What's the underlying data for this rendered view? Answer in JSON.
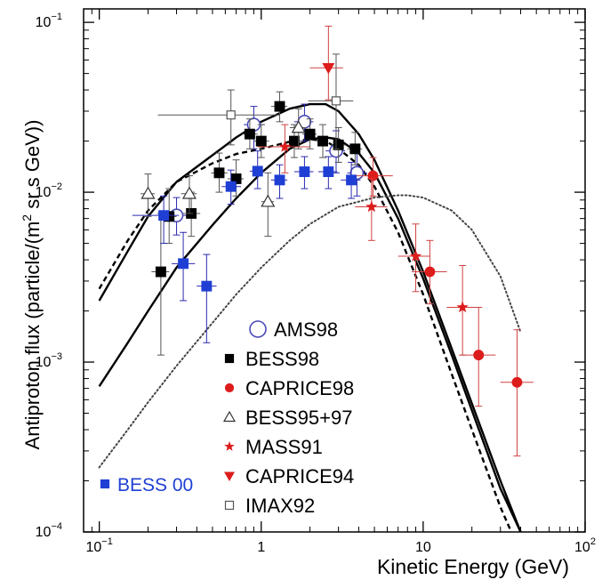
{
  "chart_data": {
    "type": "scatter",
    "title": "",
    "xlabel": "Kinetic Energy (GeV)",
    "ylabel_parts": [
      "Antiproton flux (particle/(m",
      "2",
      " sr s GeV))"
    ],
    "xscale": "log",
    "yscale": "log",
    "xlim": [
      0.08,
      100
    ],
    "ylim": [
      0.0001,
      0.12
    ],
    "x_ticks": [
      {
        "value": 0.1,
        "base": "10",
        "exp": "−1"
      },
      {
        "value": 1,
        "base": "1",
        "exp": ""
      },
      {
        "value": 10,
        "base": "10",
        "exp": ""
      },
      {
        "value": 100,
        "base": "10",
        "exp": "2"
      }
    ],
    "y_ticks": [
      {
        "value": 0.0001,
        "base": "10",
        "exp": "−4"
      },
      {
        "value": 0.001,
        "base": "10",
        "exp": "−3"
      },
      {
        "value": 0.01,
        "base": "10",
        "exp": "−2"
      },
      {
        "value": 0.1,
        "base": "10",
        "exp": "−1"
      }
    ],
    "grid": false,
    "legend_position": "inside, lower center",
    "series": [
      {
        "name": "AMS98",
        "marker": "open-circle",
        "color": "#4a4ab8",
        "points": [
          {
            "x": 0.3,
            "y": 0.0073,
            "xlo": 0.26,
            "xhi": 0.35,
            "ylo": 0.0056,
            "yhi": 0.0093
          },
          {
            "x": 0.9,
            "y": 0.025,
            "xlo": 0.78,
            "xhi": 1.05,
            "ylo": 0.018,
            "yhi": 0.032
          },
          {
            "x": 1.85,
            "y": 0.026,
            "xlo": 1.6,
            "xhi": 2.1,
            "ylo": 0.02,
            "yhi": 0.033
          },
          {
            "x": 2.9,
            "y": 0.0175,
            "xlo": 2.5,
            "xhi": 3.3,
            "ylo": 0.013,
            "yhi": 0.023
          },
          {
            "x": 3.9,
            "y": 0.013,
            "xlo": 3.4,
            "xhi": 4.5,
            "ylo": 0.0095,
            "yhi": 0.018
          }
        ]
      },
      {
        "name": "BESS98",
        "marker": "filled-square",
        "color": "#000000",
        "points": [
          {
            "x": 0.24,
            "y": 0.0034,
            "xlo": 0.21,
            "xhi": 0.27,
            "ylo": 0.0011,
            "yhi": 0.0075
          },
          {
            "x": 0.27,
            "y": 0.0072,
            "xlo": 0.24,
            "xhi": 0.3,
            "ylo": 0.005,
            "yhi": 0.0105
          },
          {
            "x": 0.37,
            "y": 0.0075,
            "xlo": 0.33,
            "xhi": 0.42,
            "ylo": 0.0055,
            "yhi": 0.01
          },
          {
            "x": 0.55,
            "y": 0.013,
            "xlo": 0.49,
            "xhi": 0.62,
            "ylo": 0.01,
            "yhi": 0.017
          },
          {
            "x": 0.7,
            "y": 0.012,
            "xlo": 0.62,
            "xhi": 0.78,
            "ylo": 0.0095,
            "yhi": 0.0155
          },
          {
            "x": 0.85,
            "y": 0.022,
            "xlo": 0.76,
            "xhi": 0.95,
            "ylo": 0.018,
            "yhi": 0.027
          },
          {
            "x": 1.0,
            "y": 0.02,
            "xlo": 0.9,
            "xhi": 1.12,
            "ylo": 0.016,
            "yhi": 0.025
          },
          {
            "x": 1.3,
            "y": 0.032,
            "xlo": 1.15,
            "xhi": 1.45,
            "ylo": 0.026,
            "yhi": 0.039
          },
          {
            "x": 1.6,
            "y": 0.02,
            "xlo": 1.45,
            "xhi": 1.8,
            "ylo": 0.016,
            "yhi": 0.025
          },
          {
            "x": 2.0,
            "y": 0.022,
            "xlo": 1.8,
            "xhi": 2.2,
            "ylo": 0.018,
            "yhi": 0.027
          },
          {
            "x": 2.4,
            "y": 0.02,
            "xlo": 2.2,
            "xhi": 2.6,
            "ylo": 0.016,
            "yhi": 0.025
          },
          {
            "x": 3.0,
            "y": 0.019,
            "xlo": 2.7,
            "xhi": 3.3,
            "ylo": 0.015,
            "yhi": 0.024
          },
          {
            "x": 3.8,
            "y": 0.018,
            "xlo": 3.4,
            "xhi": 4.2,
            "ylo": 0.0145,
            "yhi": 0.0225
          }
        ]
      },
      {
        "name": "CAPRICE98",
        "marker": "filled-circle",
        "color": "#dd1c1c",
        "points": [
          {
            "x": 4.9,
            "y": 0.0125,
            "xlo": 3.5,
            "xhi": 6.5,
            "ylo": 0.0095,
            "yhi": 0.016
          },
          {
            "x": 11.0,
            "y": 0.0034,
            "xlo": 8.5,
            "xhi": 14.0,
            "ylo": 0.0022,
            "yhi": 0.0052
          },
          {
            "x": 22.0,
            "y": 0.0011,
            "xlo": 17.0,
            "xhi": 28.0,
            "ylo": 0.00055,
            "yhi": 0.0021
          },
          {
            "x": 38.0,
            "y": 0.00076,
            "xlo": 30.0,
            "xhi": 48.0,
            "ylo": 0.00028,
            "yhi": 0.00155
          }
        ]
      },
      {
        "name": "BESS95+97",
        "marker": "open-triangle",
        "color": "#333333",
        "points": [
          {
            "x": 0.2,
            "y": 0.0098,
            "xlo": 0.18,
            "xhi": 0.22,
            "ylo": 0.0072,
            "yhi": 0.0128
          },
          {
            "x": 0.36,
            "y": 0.0098,
            "xlo": 0.32,
            "xhi": 0.4,
            "ylo": 0.0075,
            "yhi": 0.0125
          },
          {
            "x": 1.1,
            "y": 0.0088,
            "xlo": 1.0,
            "xhi": 1.2,
            "ylo": 0.0055,
            "yhi": 0.013
          },
          {
            "x": 1.7,
            "y": 0.024,
            "xlo": 1.5,
            "xhi": 1.9,
            "ylo": 0.018,
            "yhi": 0.031
          }
        ]
      },
      {
        "name": "MASS91",
        "marker": "star",
        "color": "#dd1c1c",
        "points": [
          {
            "x": 1.4,
            "y": 0.0185,
            "xlo": 0.95,
            "xhi": 2.0,
            "ylo": 0.013,
            "yhi": 0.025
          },
          {
            "x": 4.8,
            "y": 0.0082,
            "xlo": 3.8,
            "xhi": 6.0,
            "ylo": 0.0052,
            "yhi": 0.012
          },
          {
            "x": 9.0,
            "y": 0.0042,
            "xlo": 7.0,
            "xhi": 11.0,
            "ylo": 0.0026,
            "yhi": 0.0065
          },
          {
            "x": 17.5,
            "y": 0.0021,
            "xlo": 14.0,
            "xhi": 22.0,
            "ylo": 0.0011,
            "yhi": 0.0037
          }
        ]
      },
      {
        "name": "CAPRICE94",
        "marker": "filled-down-triangle",
        "color": "#dd1c1c",
        "points": [
          {
            "x": 2.6,
            "y": 0.054,
            "xlo": 2.0,
            "xhi": 3.2,
            "ylo": 0.035,
            "yhi": 0.095
          }
        ]
      },
      {
        "name": "IMAX92",
        "marker": "open-square",
        "color": "#555555",
        "points": [
          {
            "x": 0.65,
            "y": 0.0285,
            "xlo": 0.23,
            "xhi": 1.3,
            "ylo": 0.019,
            "yhi": 0.04
          },
          {
            "x": 2.9,
            "y": 0.0345,
            "xlo": 1.95,
            "xhi": 3.7,
            "ylo": 0.018,
            "yhi": 0.065
          }
        ]
      },
      {
        "name": "BESS 00",
        "marker": "filled-square",
        "color": "#1f3fd4",
        "points": [
          {
            "x": 0.25,
            "y": 0.0073,
            "xlo": 0.16,
            "xhi": 0.31,
            "ylo": 0.005,
            "yhi": 0.0095
          },
          {
            "x": 0.33,
            "y": 0.0038,
            "xlo": 0.28,
            "xhi": 0.39,
            "ylo": 0.0023,
            "yhi": 0.0058
          },
          {
            "x": 0.46,
            "y": 0.0028,
            "xlo": 0.4,
            "xhi": 0.53,
            "ylo": 0.0013,
            "yhi": 0.0043
          },
          {
            "x": 0.65,
            "y": 0.0108,
            "xlo": 0.57,
            "xhi": 0.75,
            "ylo": 0.0085,
            "yhi": 0.0135
          },
          {
            "x": 0.95,
            "y": 0.0133,
            "xlo": 0.85,
            "xhi": 1.05,
            "ylo": 0.0105,
            "yhi": 0.0175
          },
          {
            "x": 1.3,
            "y": 0.0118,
            "xlo": 1.15,
            "xhi": 1.45,
            "ylo": 0.0092,
            "yhi": 0.0145
          },
          {
            "x": 1.85,
            "y": 0.0132,
            "xlo": 1.6,
            "xhi": 2.1,
            "ylo": 0.0105,
            "yhi": 0.0162
          },
          {
            "x": 2.6,
            "y": 0.0132,
            "xlo": 2.25,
            "xhi": 2.95,
            "ylo": 0.0105,
            "yhi": 0.0162
          },
          {
            "x": 3.6,
            "y": 0.0118,
            "xlo": 3.1,
            "xhi": 4.1,
            "ylo": 0.0092,
            "yhi": 0.015
          }
        ]
      }
    ],
    "curves": [
      {
        "style": "solid",
        "color": "#000000",
        "width": 2.4,
        "points": [
          [
            0.1,
            0.0023
          ],
          [
            0.15,
            0.0045
          ],
          [
            0.2,
            0.0072
          ],
          [
            0.3,
            0.0115
          ],
          [
            0.5,
            0.0165
          ],
          [
            0.7,
            0.021
          ],
          [
            1.0,
            0.026
          ],
          [
            1.5,
            0.031
          ],
          [
            2.0,
            0.033
          ],
          [
            2.5,
            0.033
          ],
          [
            3.0,
            0.03
          ],
          [
            4.0,
            0.022
          ],
          [
            5.0,
            0.0155
          ],
          [
            7.0,
            0.0078
          ],
          [
            10.0,
            0.0034
          ],
          [
            15.0,
            0.0012
          ],
          [
            20.0,
            0.00057
          ],
          [
            30.0,
            0.0002
          ],
          [
            40.0,
            0.0001
          ]
        ]
      },
      {
        "style": "solid",
        "color": "#000000",
        "width": 2.4,
        "points": [
          [
            0.1,
            0.00072
          ],
          [
            0.15,
            0.0013
          ],
          [
            0.2,
            0.002
          ],
          [
            0.3,
            0.0036
          ],
          [
            0.5,
            0.0064
          ],
          [
            0.7,
            0.0092
          ],
          [
            1.0,
            0.013
          ],
          [
            1.5,
            0.018
          ],
          [
            2.0,
            0.0205
          ],
          [
            2.5,
            0.021
          ],
          [
            3.0,
            0.0205
          ],
          [
            4.0,
            0.017
          ],
          [
            5.0,
            0.013
          ],
          [
            7.0,
            0.007
          ],
          [
            10.0,
            0.0031
          ],
          [
            15.0,
            0.0011
          ],
          [
            20.0,
            0.00052
          ],
          [
            30.0,
            0.00018
          ],
          [
            40.0,
            0.0001
          ]
        ]
      },
      {
        "style": "dashed",
        "color": "#000000",
        "width": 2.4,
        "points": [
          [
            0.1,
            0.0027
          ],
          [
            0.15,
            0.0052
          ],
          [
            0.2,
            0.0078
          ],
          [
            0.3,
            0.0115
          ],
          [
            0.5,
            0.0148
          ],
          [
            0.7,
            0.0168
          ],
          [
            1.0,
            0.018
          ],
          [
            1.5,
            0.0198
          ],
          [
            2.0,
            0.0205
          ],
          [
            2.5,
            0.02
          ],
          [
            3.0,
            0.018
          ],
          [
            4.0,
            0.0145
          ],
          [
            5.0,
            0.0108
          ],
          [
            7.0,
            0.0058
          ],
          [
            10.0,
            0.0025
          ],
          [
            15.0,
            0.00085
          ],
          [
            20.0,
            0.0004
          ],
          [
            30.0,
            0.00014
          ],
          [
            35.0,
            0.0001
          ]
        ]
      },
      {
        "style": "dotted",
        "color": "#444444",
        "width": 2.0,
        "points": [
          [
            0.1,
            0.00024
          ],
          [
            0.15,
            0.0004
          ],
          [
            0.2,
            0.00058
          ],
          [
            0.3,
            0.00095
          ],
          [
            0.5,
            0.0017
          ],
          [
            0.7,
            0.0025
          ],
          [
            1.0,
            0.0036
          ],
          [
            1.5,
            0.0052
          ],
          [
            2.0,
            0.0065
          ],
          [
            3.0,
            0.0082
          ],
          [
            5.0,
            0.0093
          ],
          [
            7.0,
            0.0096
          ],
          [
            8.0,
            0.0096
          ],
          [
            10.0,
            0.0093
          ],
          [
            15.0,
            0.0078
          ],
          [
            20.0,
            0.006
          ],
          [
            30.0,
            0.0032
          ],
          [
            40.0,
            0.0015
          ]
        ]
      }
    ],
    "legend_main": [
      {
        "label": "AMS98",
        "marker": "open-circle",
        "color": "#4a4ab8"
      },
      {
        "label": "BESS98",
        "marker": "filled-square",
        "color": "#000000"
      },
      {
        "label": "CAPRICE98",
        "marker": "filled-circle",
        "color": "#dd1c1c"
      },
      {
        "label": "BESS95+97",
        "marker": "open-triangle",
        "color": "#333333"
      },
      {
        "label": "MASS91",
        "marker": "star",
        "color": "#dd1c1c"
      },
      {
        "label": "CAPRICE94",
        "marker": "filled-down-triangle",
        "color": "#dd1c1c"
      },
      {
        "label": "IMAX92",
        "marker": "open-square",
        "color": "#555555"
      }
    ],
    "legend_bess00": {
      "label": "BESS 00",
      "marker": "filled-square",
      "color": "#1f3fd4",
      "text_color": "#1f3fd4"
    }
  }
}
